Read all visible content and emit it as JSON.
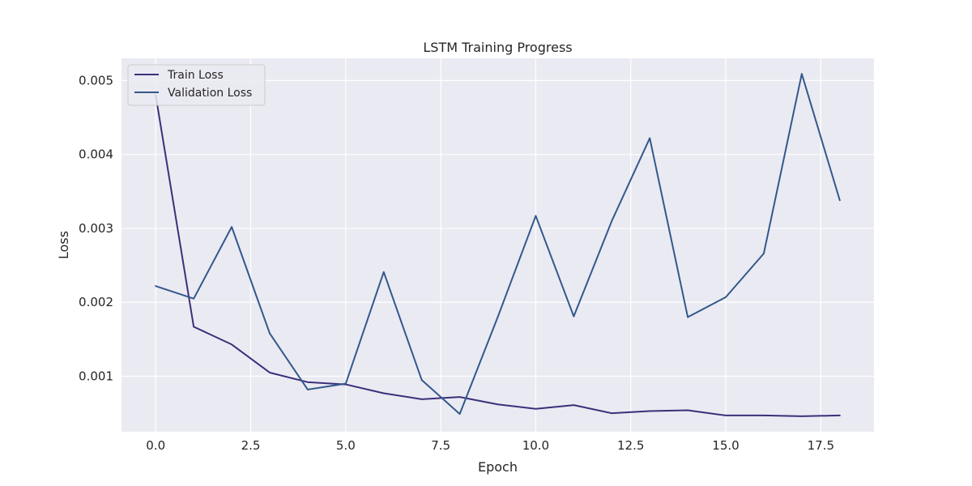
{
  "chart_data": {
    "type": "line",
    "title": "LSTM Training Progress",
    "xlabel": "Epoch",
    "ylabel": "Loss",
    "xlim": [
      -0.9,
      18.9
    ],
    "ylim": [
      0.00025,
      0.0053
    ],
    "xticks": [
      0.0,
      2.5,
      5.0,
      7.5,
      10.0,
      12.5,
      15.0,
      17.5
    ],
    "xtick_labels": [
      "0.0",
      "2.5",
      "5.0",
      "7.5",
      "10.0",
      "12.5",
      "15.0",
      "17.5"
    ],
    "yticks": [
      0.001,
      0.002,
      0.003,
      0.004,
      0.005
    ],
    "ytick_labels": [
      "0.001",
      "0.002",
      "0.003",
      "0.004",
      "0.005"
    ],
    "grid": true,
    "legend_position": "top-left",
    "x": [
      0,
      1,
      2,
      3,
      4,
      5,
      6,
      7,
      8,
      9,
      10,
      11,
      12,
      13,
      14,
      15,
      16,
      17,
      18
    ],
    "series": [
      {
        "name": "Train Loss",
        "color": "#3b2f7a",
        "values": [
          0.0048,
          0.00167,
          0.00143,
          0.00105,
          0.00092,
          0.00089,
          0.00077,
          0.00069,
          0.00072,
          0.00062,
          0.00056,
          0.00061,
          0.0005,
          0.00053,
          0.00054,
          0.00047,
          0.00047,
          0.00046,
          0.00047
        ]
      },
      {
        "name": "Validation Loss",
        "color": "#33588c",
        "values": [
          0.00222,
          0.00205,
          0.00302,
          0.00158,
          0.00082,
          0.0009,
          0.00241,
          0.00095,
          0.00049,
          0.0018,
          0.00317,
          0.00181,
          0.0031,
          0.00422,
          0.0018,
          0.00207,
          0.00266,
          0.00509,
          0.00338
        ]
      }
    ]
  },
  "colors": {
    "plot_background": "#eaeaf2",
    "grid": "#ffffff"
  }
}
